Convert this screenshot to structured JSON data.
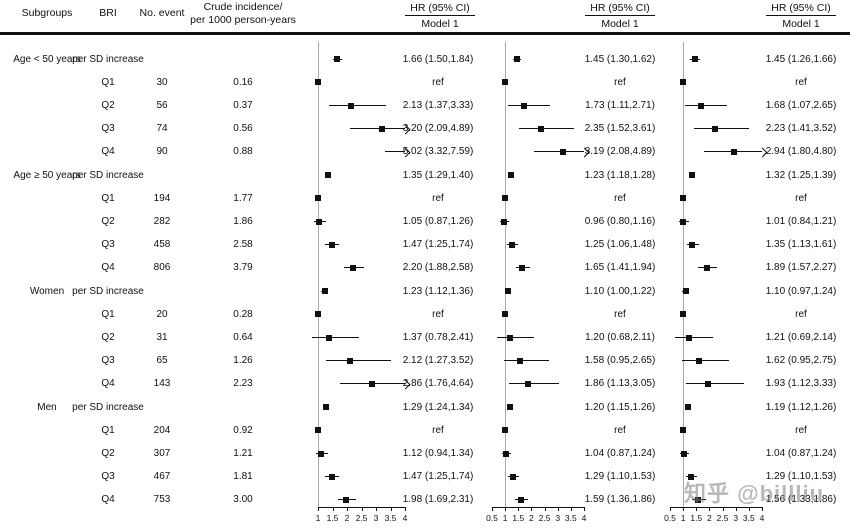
{
  "watermark": "知乎 @billliu",
  "columns": {
    "subgroups": "Subgroups",
    "bri": "BRI",
    "events": "No. event",
    "incidence_line1": "Crude incidence/",
    "incidence_line2": "per 1000 person-years"
  },
  "chart_data": {
    "type": "forest",
    "panels": [
      {
        "header": "HR (95% CI)",
        "subheader": "Model 1",
        "axis": {
          "min": 1,
          "max": 4,
          "ref": 1,
          "ticks": [
            "1",
            "1.5",
            "2",
            "2.5",
            "3",
            "3.5",
            "4"
          ]
        }
      },
      {
        "header": "HR (95% CI)",
        "subheader": "Model 1",
        "axis": {
          "min": 0.5,
          "max": 4,
          "ref": 1,
          "ticks": [
            "0.5",
            "1",
            "1.5",
            "2",
            "2.5",
            "3",
            "3.5",
            "4"
          ]
        }
      },
      {
        "header": "HR (95% CI)",
        "subheader": "Model 1",
        "axis": {
          "min": 0.5,
          "max": 4,
          "ref": 1,
          "ticks": [
            "0.5",
            "1",
            "1.5",
            "2",
            "2.5",
            "3",
            "3.5",
            "4"
          ]
        }
      }
    ],
    "rows": [
      {
        "subgroup": "Age < 50 years",
        "bri": "per SD increase",
        "events": "",
        "incidence": "",
        "estimates": [
          {
            "hr": 1.66,
            "lo": 1.5,
            "hi": 1.84,
            "label": "1.66 (1.50,1.84)"
          },
          {
            "hr": 1.45,
            "lo": 1.3,
            "hi": 1.62,
            "label": "1.45 (1.30,1.62)"
          },
          {
            "hr": 1.45,
            "lo": 1.26,
            "hi": 1.66,
            "label": "1.45 (1.26,1.66)"
          }
        ]
      },
      {
        "subgroup": "",
        "bri": "Q1",
        "events": "30",
        "incidence": "0.16",
        "estimates": [
          {
            "ref": true,
            "label": "ref"
          },
          {
            "ref": true,
            "label": "ref"
          },
          {
            "ref": true,
            "label": "ref"
          }
        ]
      },
      {
        "subgroup": "",
        "bri": "Q2",
        "events": "56",
        "incidence": "0.37",
        "estimates": [
          {
            "hr": 2.13,
            "lo": 1.37,
            "hi": 3.33,
            "label": "2.13 (1.37,3.33)"
          },
          {
            "hr": 1.73,
            "lo": 1.11,
            "hi": 2.71,
            "label": "1.73 (1.11,2.71)"
          },
          {
            "hr": 1.68,
            "lo": 1.07,
            "hi": 2.65,
            "label": "1.68 (1.07,2.65)"
          }
        ]
      },
      {
        "subgroup": "",
        "bri": "Q3",
        "events": "74",
        "incidence": "0.56",
        "estimates": [
          {
            "hr": 3.2,
            "lo": 2.09,
            "hi": 4.89,
            "label": "3.20 (2.09,4.89)"
          },
          {
            "hr": 2.35,
            "lo": 1.52,
            "hi": 3.61,
            "label": "2.35 (1.52,3.61)"
          },
          {
            "hr": 2.23,
            "lo": 1.41,
            "hi": 3.52,
            "label": "2.23 (1.41,3.52)"
          }
        ]
      },
      {
        "subgroup": "",
        "bri": "Q4",
        "events": "90",
        "incidence": "0.88",
        "estimates": [
          {
            "hr": 5.02,
            "lo": 3.32,
            "hi": 7.59,
            "label": "5.02 (3.32,7.59)"
          },
          {
            "hr": 3.19,
            "lo": 2.08,
            "hi": 4.89,
            "label": "3.19 (2.08,4.89)"
          },
          {
            "hr": 2.94,
            "lo": 1.8,
            "hi": 4.8,
            "label": "2.94 (1.80,4.80)"
          }
        ]
      },
      {
        "subgroup": "Age ≥ 50 years",
        "bri": "per SD increase",
        "events": "",
        "incidence": "",
        "estimates": [
          {
            "hr": 1.35,
            "lo": 1.29,
            "hi": 1.4,
            "label": "1.35 (1.29,1.40)"
          },
          {
            "hr": 1.23,
            "lo": 1.18,
            "hi": 1.28,
            "label": "1.23 (1.18,1.28)"
          },
          {
            "hr": 1.32,
            "lo": 1.25,
            "hi": 1.39,
            "label": "1.32 (1.25,1.39)"
          }
        ]
      },
      {
        "subgroup": "",
        "bri": "Q1",
        "events": "194",
        "incidence": "1.77",
        "estimates": [
          {
            "ref": true,
            "label": "ref"
          },
          {
            "ref": true,
            "label": "ref"
          },
          {
            "ref": true,
            "label": "ref"
          }
        ]
      },
      {
        "subgroup": "",
        "bri": "Q2",
        "events": "282",
        "incidence": "1.86",
        "estimates": [
          {
            "hr": 1.05,
            "lo": 0.87,
            "hi": 1.26,
            "label": "1.05 (0.87,1.26)"
          },
          {
            "hr": 0.96,
            "lo": 0.8,
            "hi": 1.16,
            "label": "0.96 (0.80,1.16)"
          },
          {
            "hr": 1.01,
            "lo": 0.84,
            "hi": 1.21,
            "label": "1.01 (0.84,1.21)"
          }
        ]
      },
      {
        "subgroup": "",
        "bri": "Q3",
        "events": "458",
        "incidence": "2.58",
        "estimates": [
          {
            "hr": 1.47,
            "lo": 1.25,
            "hi": 1.74,
            "label": "1.47 (1.25,1.74)"
          },
          {
            "hr": 1.25,
            "lo": 1.06,
            "hi": 1.48,
            "label": "1.25 (1.06,1.48)"
          },
          {
            "hr": 1.35,
            "lo": 1.13,
            "hi": 1.61,
            "label": "1.35 (1.13,1.61)"
          }
        ]
      },
      {
        "subgroup": "",
        "bri": "Q4",
        "events": "806",
        "incidence": "3.79",
        "estimates": [
          {
            "hr": 2.2,
            "lo": 1.88,
            "hi": 2.58,
            "label": "2.20 (1.88,2.58)"
          },
          {
            "hr": 1.65,
            "lo": 1.41,
            "hi": 1.94,
            "label": "1.65 (1.41,1.94)"
          },
          {
            "hr": 1.89,
            "lo": 1.57,
            "hi": 2.27,
            "label": "1.89 (1.57,2.27)"
          }
        ]
      },
      {
        "subgroup": "Women",
        "bri": "per SD increase",
        "events": "",
        "incidence": "",
        "estimates": [
          {
            "hr": 1.23,
            "lo": 1.12,
            "hi": 1.36,
            "label": "1.23 (1.12,1.36)"
          },
          {
            "hr": 1.1,
            "lo": 1.0,
            "hi": 1.22,
            "label": "1.10 (1.00,1.22)"
          },
          {
            "hr": 1.1,
            "lo": 0.97,
            "hi": 1.24,
            "label": "1.10 (0.97,1.24)"
          }
        ]
      },
      {
        "subgroup": "",
        "bri": "Q1",
        "events": "20",
        "incidence": "0.28",
        "estimates": [
          {
            "ref": true,
            "label": "ref"
          },
          {
            "ref": true,
            "label": "ref"
          },
          {
            "ref": true,
            "label": "ref"
          }
        ]
      },
      {
        "subgroup": "",
        "bri": "Q2",
        "events": "31",
        "incidence": "0.64",
        "estimates": [
          {
            "hr": 1.37,
            "lo": 0.78,
            "hi": 2.41,
            "label": "1.37 (0.78,2.41)"
          },
          {
            "hr": 1.2,
            "lo": 0.68,
            "hi": 2.11,
            "label": "1.20 (0.68,2.11)"
          },
          {
            "hr": 1.21,
            "lo": 0.69,
            "hi": 2.14,
            "label": "1.21 (0.69,2.14)"
          }
        ]
      },
      {
        "subgroup": "",
        "bri": "Q3",
        "events": "65",
        "incidence": "1.26",
        "estimates": [
          {
            "hr": 2.12,
            "lo": 1.27,
            "hi": 3.52,
            "label": "2.12 (1.27,3.52)"
          },
          {
            "hr": 1.58,
            "lo": 0.95,
            "hi": 2.65,
            "label": "1.58 (0.95,2.65)"
          },
          {
            "hr": 1.62,
            "lo": 0.95,
            "hi": 2.75,
            "label": "1.62 (0.95,2.75)"
          }
        ]
      },
      {
        "subgroup": "",
        "bri": "Q4",
        "events": "143",
        "incidence": "2.23",
        "estimates": [
          {
            "hr": 2.86,
            "lo": 1.76,
            "hi": 4.64,
            "label": "2.86 (1.76,4.64)"
          },
          {
            "hr": 1.86,
            "lo": 1.13,
            "hi": 3.05,
            "label": "1.86 (1.13,3.05)"
          },
          {
            "hr": 1.93,
            "lo": 1.12,
            "hi": 3.33,
            "label": "1.93 (1.12,3.33)"
          }
        ]
      },
      {
        "subgroup": "Men",
        "bri": "per SD increase",
        "events": "",
        "incidence": "",
        "estimates": [
          {
            "hr": 1.29,
            "lo": 1.24,
            "hi": 1.34,
            "label": "1.29 (1.24,1.34)"
          },
          {
            "hr": 1.2,
            "lo": 1.15,
            "hi": 1.26,
            "label": "1.20 (1.15,1.26)"
          },
          {
            "hr": 1.19,
            "lo": 1.12,
            "hi": 1.26,
            "label": "1.19 (1.12,1.26)"
          }
        ]
      },
      {
        "subgroup": "",
        "bri": "Q1",
        "events": "204",
        "incidence": "0.92",
        "estimates": [
          {
            "ref": true,
            "label": "ref"
          },
          {
            "ref": true,
            "label": "ref"
          },
          {
            "ref": true,
            "label": "ref"
          }
        ]
      },
      {
        "subgroup": "",
        "bri": "Q2",
        "events": "307",
        "incidence": "1.21",
        "estimates": [
          {
            "hr": 1.12,
            "lo": 0.94,
            "hi": 1.34,
            "label": "1.12 (0.94,1.34)"
          },
          {
            "hr": 1.04,
            "lo": 0.87,
            "hi": 1.24,
            "label": "1.04 (0.87,1.24)"
          },
          {
            "hr": 1.04,
            "lo": 0.87,
            "hi": 1.24,
            "label": "1.04 (0.87,1.24)"
          }
        ]
      },
      {
        "subgroup": "",
        "bri": "Q3",
        "events": "467",
        "incidence": "1.81",
        "estimates": [
          {
            "hr": 1.47,
            "lo": 1.25,
            "hi": 1.74,
            "label": "1.47 (1.25,1.74)"
          },
          {
            "hr": 1.29,
            "lo": 1.1,
            "hi": 1.53,
            "label": "1.29 (1.10,1.53)"
          },
          {
            "hr": 1.29,
            "lo": 1.1,
            "hi": 1.53,
            "label": "1.29 (1.10,1.53)"
          }
        ]
      },
      {
        "subgroup": "",
        "bri": "Q4",
        "events": "753",
        "incidence": "3.00",
        "estimates": [
          {
            "hr": 1.98,
            "lo": 1.69,
            "hi": 2.31,
            "label": "1.98 (1.69,2.31)"
          },
          {
            "hr": 1.59,
            "lo": 1.36,
            "hi": 1.86,
            "label": "1.59 (1.36,1.86)"
          },
          {
            "hr": 1.56,
            "lo": 1.33,
            "hi": 1.86,
            "label": "1.56 (1.33,1.86)"
          }
        ]
      }
    ]
  }
}
